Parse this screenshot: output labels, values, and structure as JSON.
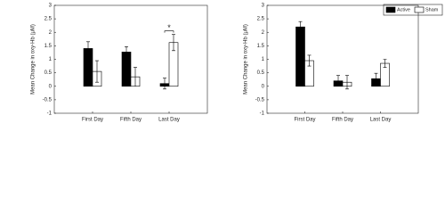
{
  "chart_data": [
    {
      "type": "bar",
      "ylabel": "Mean Change in oxy-Hb (μM)",
      "categories": [
        "First Day",
        "Fifth Day",
        "Last Day"
      ],
      "series": [
        {
          "name": "Active",
          "color": "#000000",
          "values": [
            1.4,
            1.27,
            0.1
          ],
          "errors": [
            0.25,
            0.2,
            0.2
          ]
        },
        {
          "name": "Sham",
          "color": "#ffffff",
          "values": [
            0.55,
            0.35,
            1.62
          ],
          "errors": [
            0.4,
            0.35,
            0.3
          ]
        }
      ],
      "annotation": "*",
      "ylim": [
        -1,
        3
      ],
      "yticks": [
        -1,
        -0.5,
        0,
        0.5,
        1,
        1.5,
        2,
        2.5,
        3
      ]
    },
    {
      "type": "bar",
      "ylabel": "Mean Change in oxy-Hb (μM)",
      "categories": [
        "First Day",
        "Fifth Day",
        "Last Day"
      ],
      "series": [
        {
          "name": "Active",
          "color": "#000000",
          "values": [
            2.2,
            0.2,
            0.28
          ],
          "errors": [
            0.2,
            0.2,
            0.2
          ]
        },
        {
          "name": "Sham",
          "color": "#ffffff",
          "values": [
            0.95,
            0.15,
            0.85
          ],
          "errors": [
            0.2,
            0.25,
            0.15
          ]
        }
      ],
      "legend": "northeast",
      "ylim": [
        -1,
        3
      ],
      "yticks": [
        -1,
        -0.5,
        0,
        0.5,
        1,
        1.5,
        2,
        2.5,
        3
      ]
    }
  ]
}
